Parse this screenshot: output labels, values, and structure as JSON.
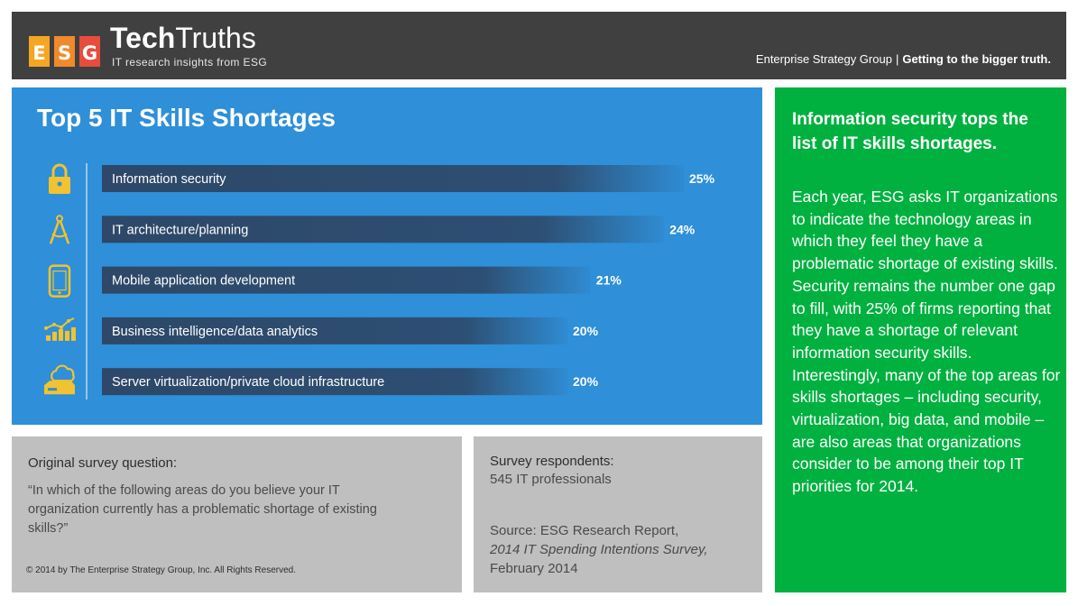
{
  "header": {
    "logo_letters": [
      "E",
      "S",
      "G"
    ],
    "brand_bold": "Tech",
    "brand_light": "Truths",
    "tagline": "IT research insights  from ESG",
    "org": "Enterprise Strategy Group",
    "separator": "|",
    "slogan": "Getting to the bigger truth."
  },
  "chart_data": {
    "type": "bar",
    "orientation": "horizontal",
    "title": "Top 5 IT Skills Shortages",
    "categories": [
      "Information security",
      "IT architecture/planning",
      "Mobile application development",
      "Business intelligence/data analytics",
      "Server virtualization/private cloud infrastructure"
    ],
    "values": [
      25,
      24,
      21,
      20,
      20
    ],
    "value_labels": [
      "25%",
      "24%",
      "21%",
      "20%",
      "20%"
    ],
    "icons": [
      "lock-icon",
      "compass-icon",
      "smartphone-icon",
      "analytics-chart-icon",
      "cloud-server-icon"
    ],
    "grid": false,
    "legend": "none"
  },
  "insight": {
    "heading": "Information security tops the list of IT skills shortages.",
    "body": "Each year, ESG asks IT organizations to indicate the technology areas in which they feel they have a problematic shortage of existing skills. Security remains the number one gap to fill, with 25% of firms reporting that they have a shortage of relevant information security skills.  Interestingly, many of the top areas for skills shortages – including security, virtualization, big data, and mobile – are also areas that organizations consider to be among their top IT priorities for 2014."
  },
  "question": {
    "label": "Original survey question:",
    "text": "“In which of the following areas do you believe  your IT organization currently has a problematic shortage of existing skills?”",
    "copyright": "© 2014 by The Enterprise Strategy Group, Inc. All Rights Reserved."
  },
  "survey": {
    "respondents_label": "Survey respondents:",
    "respondents_value": "545 IT professionals",
    "source_prefix": "Source:  ESG Research Report,",
    "source_title": "2014 IT Spending Intentions Survey,",
    "source_date": " February 2014"
  },
  "colors": {
    "header_bg": "#404040",
    "chart_bg": "#2f8fd8",
    "bar_dark": "#2d4868",
    "icon_yellow": "#f2c230",
    "insight_bg": "#00b140",
    "grey_panel": "#bfbfbf",
    "logo_orange": "#f5a623",
    "logo_red": "#e84c3d"
  }
}
